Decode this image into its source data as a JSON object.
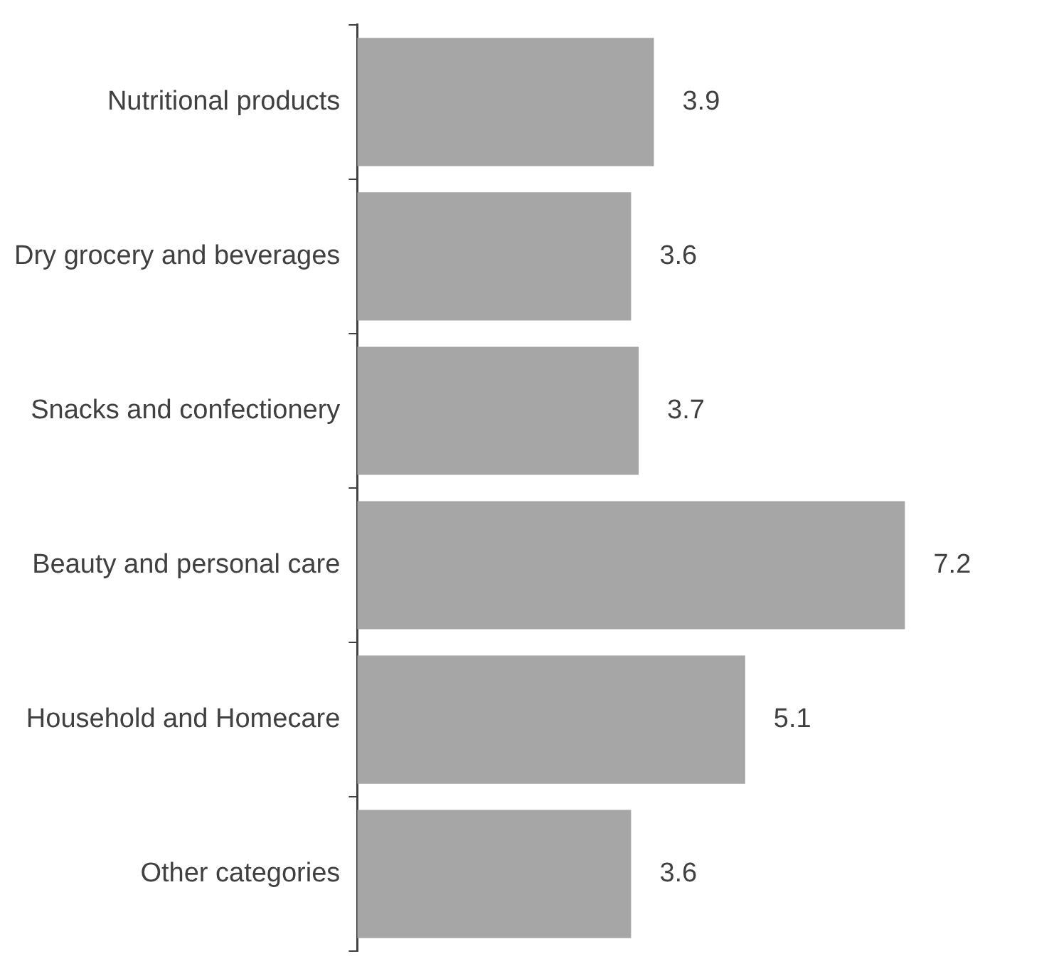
{
  "chart_data": {
    "type": "bar",
    "orientation": "horizontal",
    "categories": [
      "Nutritional products",
      "Dry grocery and beverages",
      "Snacks and confectionery",
      "Beauty and personal care",
      "Household and Homecare",
      "Other categories"
    ],
    "values": [
      3.9,
      3.6,
      3.7,
      7.2,
      5.1,
      3.6
    ],
    "color": "#a6a6a6",
    "data_labels": true,
    "grid": false,
    "legend": false,
    "tick_labels": "y"
  }
}
